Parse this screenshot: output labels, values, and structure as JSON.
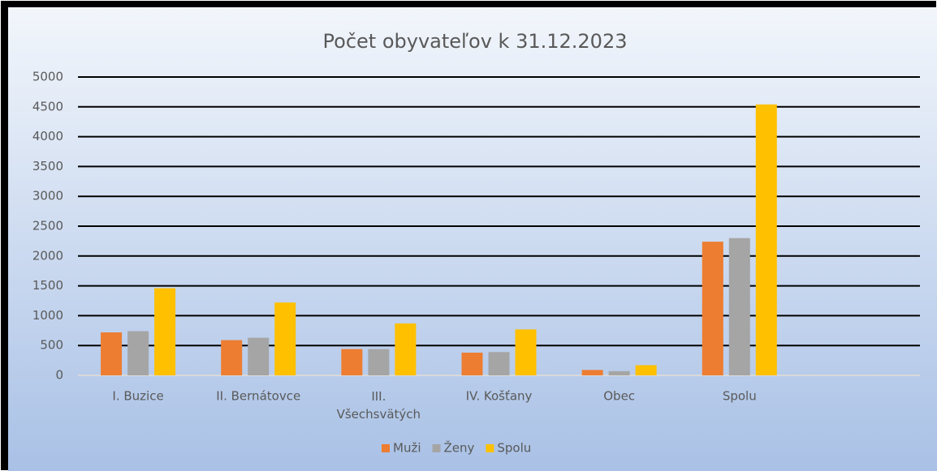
{
  "chart_data": {
    "type": "bar",
    "title": "Počet obyvateľov k 31.12.2023",
    "categories": [
      "I. Buzice",
      "II. Bernátovce",
      "III. Všechsvätých",
      "IV. Košťany",
      "Obec",
      "Spolu",
      null
    ],
    "series": [
      {
        "name": "Muži",
        "color": "#ed7d31",
        "values": [
          720,
          590,
          440,
          380,
          90,
          2240,
          null
        ]
      },
      {
        "name": "Ženy",
        "color": "#a5a5a5",
        "values": [
          740,
          630,
          440,
          390,
          70,
          2300,
          null
        ]
      },
      {
        "name": "Spolu",
        "color": "#ffc000",
        "values": [
          1460,
          1220,
          870,
          770,
          170,
          4540,
          null
        ]
      }
    ],
    "ylim": [
      0,
      5000
    ],
    "yticks": [
      0,
      500,
      1000,
      1500,
      2000,
      2500,
      3000,
      3500,
      4000,
      4500,
      5000
    ],
    "grid": true,
    "legend": "bottom"
  }
}
